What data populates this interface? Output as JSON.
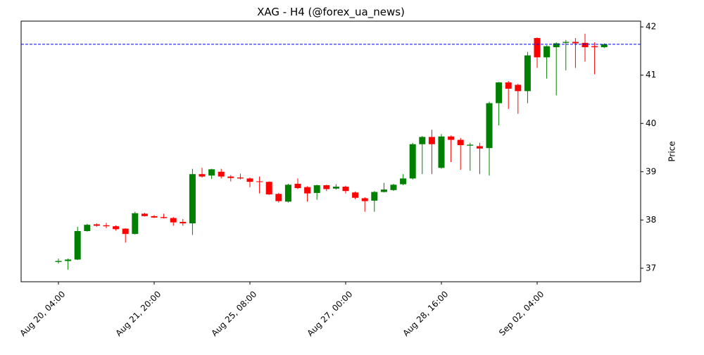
{
  "chart_data": {
    "type": "candlestick",
    "title": "XAG - H4 (@forex_ua_news)",
    "ylabel": "Price",
    "y_axis_side": "right",
    "categories": [
      "Aug 20, 04:00",
      null,
      null,
      null,
      null,
      null,
      null,
      null,
      null,
      null,
      "Aug 21, 20:00",
      null,
      null,
      null,
      null,
      null,
      null,
      null,
      null,
      null,
      "Aug 25, 08:00",
      null,
      null,
      null,
      null,
      null,
      null,
      null,
      null,
      null,
      "Aug 27, 00:00",
      null,
      null,
      null,
      null,
      null,
      null,
      null,
      null,
      null,
      "Aug 28, 16:00",
      null,
      null,
      null,
      null,
      null,
      null,
      null,
      null,
      null,
      "Sep 02, 04:00",
      null,
      null,
      null,
      null,
      null,
      null,
      null
    ],
    "open": [
      37.13,
      37.15,
      37.18,
      37.77,
      37.91,
      37.89,
      37.87,
      37.82,
      37.71,
      38.13,
      38.08,
      38.06,
      38.04,
      37.96,
      37.93,
      38.95,
      38.92,
      39.0,
      38.9,
      38.88,
      38.86,
      38.8,
      38.79,
      38.54,
      38.38,
      38.75,
      38.68,
      38.56,
      38.72,
      38.65,
      38.69,
      38.57,
      38.45,
      38.4,
      38.58,
      38.62,
      38.74,
      38.86,
      39.57,
      39.72,
      39.08,
      39.73,
      39.66,
      39.54,
      39.53,
      39.49,
      40.42,
      40.85,
      40.8,
      40.67,
      41.77,
      41.37,
      41.58,
      41.67,
      41.69,
      41.67,
      41.6,
      41.58
    ],
    "high": [
      37.2,
      37.2,
      37.86,
      37.92,
      37.93,
      37.94,
      37.89,
      37.83,
      38.17,
      38.15,
      38.1,
      38.13,
      38.06,
      38.02,
      39.06,
      39.08,
      39.06,
      39.06,
      38.93,
      38.96,
      38.88,
      38.9,
      38.8,
      38.56,
      38.75,
      38.86,
      38.7,
      38.73,
      38.73,
      38.74,
      38.71,
      38.59,
      38.47,
      38.6,
      38.77,
      38.75,
      38.95,
      39.6,
      39.74,
      39.87,
      39.78,
      39.75,
      39.7,
      39.6,
      39.6,
      40.45,
      40.86,
      40.88,
      40.82,
      41.48,
      41.78,
      41.62,
      41.68,
      41.73,
      41.77,
      41.86,
      41.68,
      41.66
    ],
    "low": [
      37.1,
      36.97,
      37.17,
      37.76,
      37.86,
      37.83,
      37.78,
      37.53,
      37.7,
      38.07,
      38.04,
      38.03,
      37.88,
      37.88,
      37.69,
      38.88,
      38.85,
      38.86,
      38.8,
      38.84,
      38.68,
      38.55,
      38.52,
      38.36,
      38.36,
      38.64,
      38.38,
      38.42,
      38.6,
      38.63,
      38.55,
      38.43,
      38.17,
      38.17,
      38.57,
      38.6,
      38.72,
      38.84,
      38.95,
      38.95,
      39.06,
      39.2,
      39.04,
      39.02,
      38.95,
      38.92,
      39.96,
      40.3,
      40.2,
      40.42,
      41.15,
      40.93,
      40.58,
      41.1,
      41.15,
      41.28,
      41.02,
      41.56
    ],
    "close": [
      37.15,
      37.18,
      37.77,
      37.9,
      37.88,
      37.87,
      37.81,
      37.71,
      38.14,
      38.08,
      38.05,
      38.04,
      37.95,
      37.93,
      38.95,
      38.9,
      39.05,
      38.9,
      38.87,
      38.86,
      38.79,
      38.79,
      38.53,
      38.39,
      38.73,
      38.66,
      38.55,
      38.72,
      38.64,
      38.69,
      38.6,
      38.46,
      38.39,
      38.58,
      38.63,
      38.73,
      38.86,
      39.57,
      39.72,
      39.57,
      39.73,
      39.66,
      39.55,
      39.56,
      39.48,
      40.42,
      40.85,
      40.72,
      40.67,
      41.41,
      41.37,
      41.6,
      41.66,
      41.69,
      41.66,
      41.58,
      41.58,
      41.64
    ],
    "up_color": "#008000",
    "down_color": "#ff0000",
    "hline": 41.64,
    "hline_color": "#0000ff",
    "ylim": [
      36.72,
      42.12
    ],
    "yticks": [
      37,
      38,
      39,
      40,
      41,
      42
    ]
  }
}
